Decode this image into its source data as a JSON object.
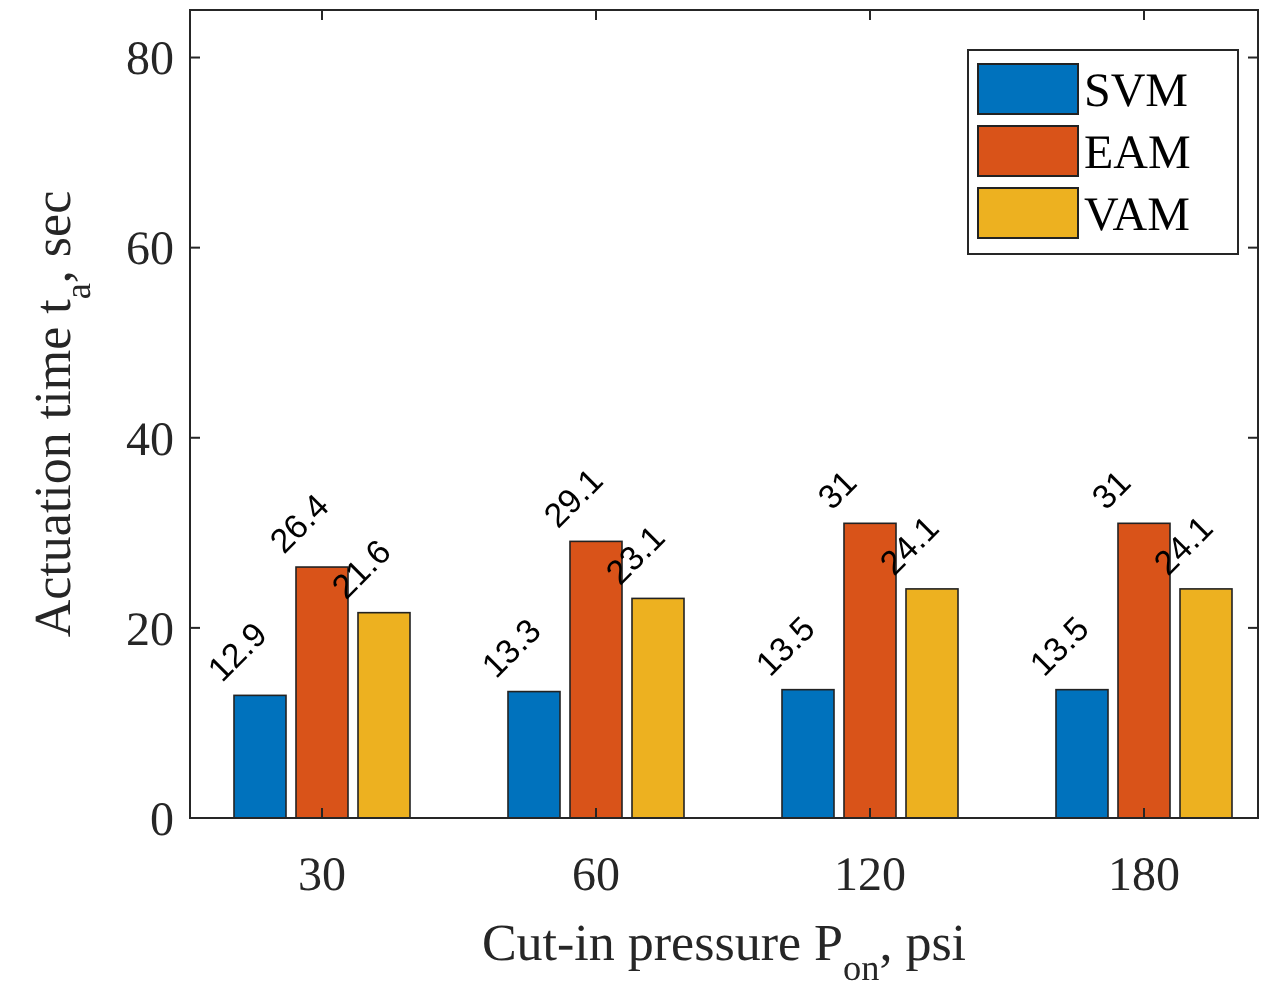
{
  "chart_data": {
    "type": "bar",
    "xlabel": "Cut-in pressure P$_{on}$, psi",
    "ylabel": "Actuation time t$_{a}$, sec",
    "categories": [
      "30",
      "60",
      "120",
      "180"
    ],
    "series": [
      {
        "name": "SVM",
        "color": "#0072bd",
        "values": [
          12.9,
          13.3,
          13.5,
          13.5
        ]
      },
      {
        "name": "EAM",
        "color": "#d95319",
        "values": [
          26.4,
          29.1,
          31,
          31
        ]
      },
      {
        "name": "VAM",
        "color": "#edb120",
        "values": [
          21.6,
          23.1,
          24.1,
          24.1
        ]
      }
    ],
    "ylim": [
      0,
      85
    ],
    "yticks": [
      0,
      20,
      40,
      60,
      80
    ],
    "data_labels": true,
    "legend": "top right",
    "grid": false
  }
}
